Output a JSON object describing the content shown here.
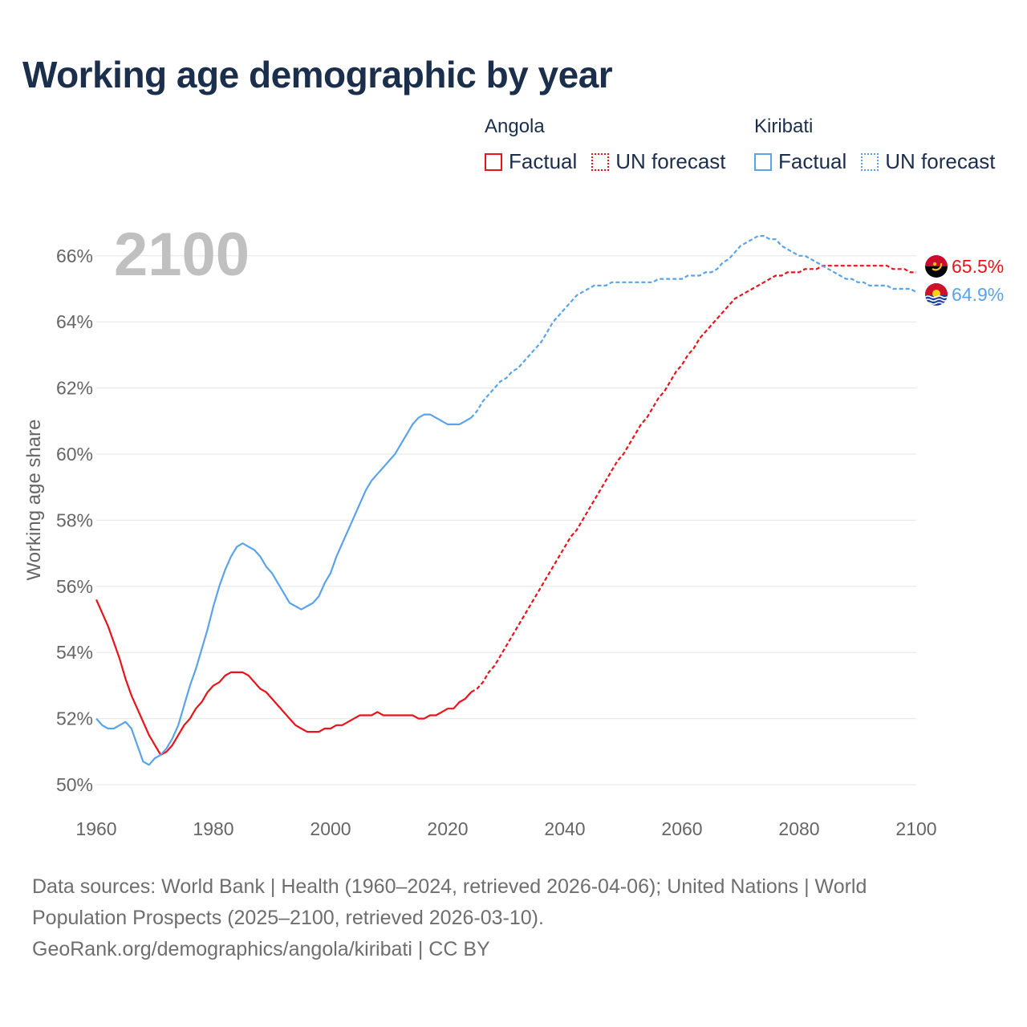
{
  "title": "Working age demographic by year",
  "legend": {
    "groups": [
      {
        "name": "Angola",
        "factual": "Factual",
        "forecast": "UN forecast",
        "color": "#e8131b"
      },
      {
        "name": "Kiribati",
        "factual": "Factual",
        "forecast": "UN forecast",
        "color": "#5aa3e8"
      }
    ]
  },
  "footer": {
    "line1": "Data sources: World Bank | Health (1960–2024, retrieved 2026-04-06); United Nations | World",
    "line2": "Population Prospects (2025–2100, retrieved 2026-03-10).",
    "line3": "GeoRank.org/demographics/angola/kiribati | CC BY"
  },
  "chart_data": {
    "type": "line",
    "title": "Working age demographic by year",
    "xlabel": "",
    "ylabel": "Working age share",
    "year_display": "2100",
    "xlim": [
      1960,
      2100
    ],
    "ylim": [
      50,
      66.5
    ],
    "xticks": [
      1960,
      1980,
      2000,
      2020,
      2040,
      2060,
      2080,
      2100
    ],
    "yticks": [
      50,
      52,
      54,
      56,
      58,
      60,
      62,
      64,
      66
    ],
    "ytick_labels": [
      "50%",
      "52%",
      "54%",
      "56%",
      "58%",
      "60%",
      "62%",
      "64%",
      "66%"
    ],
    "grid": true,
    "factual_end_year": 2024,
    "series": [
      {
        "name": "Angola",
        "color": "#e8131b",
        "end_label": "65.5%",
        "flag_icon": "angola-flag-icon",
        "factual": {
          "x": [
            1960,
            1961,
            1962,
            1963,
            1964,
            1965,
            1966,
            1967,
            1968,
            1969,
            1970,
            1971,
            1972,
            1973,
            1974,
            1975,
            1976,
            1977,
            1978,
            1979,
            1980,
            1981,
            1982,
            1983,
            1984,
            1985,
            1986,
            1987,
            1988,
            1989,
            1990,
            1991,
            1992,
            1993,
            1994,
            1995,
            1996,
            1997,
            1998,
            1999,
            2000,
            2001,
            2002,
            2003,
            2004,
            2005,
            2006,
            2007,
            2008,
            2009,
            2010,
            2011,
            2012,
            2013,
            2014,
            2015,
            2016,
            2017,
            2018,
            2019,
            2020,
            2021,
            2022,
            2023,
            2024
          ],
          "y": [
            55.6,
            55.2,
            54.8,
            54.3,
            53.8,
            53.2,
            52.7,
            52.3,
            51.9,
            51.5,
            51.2,
            50.9,
            51.0,
            51.2,
            51.5,
            51.8,
            52.0,
            52.3,
            52.5,
            52.8,
            53.0,
            53.1,
            53.3,
            53.4,
            53.4,
            53.4,
            53.3,
            53.1,
            52.9,
            52.8,
            52.6,
            52.4,
            52.2,
            52.0,
            51.8,
            51.7,
            51.6,
            51.6,
            51.6,
            51.7,
            51.7,
            51.8,
            51.8,
            51.9,
            52.0,
            52.1,
            52.1,
            52.1,
            52.2,
            52.1,
            52.1,
            52.1,
            52.1,
            52.1,
            52.1,
            52.0,
            52.0,
            52.1,
            52.1,
            52.2,
            52.3,
            52.3,
            52.5,
            52.6,
            52.8
          ]
        },
        "forecast": {
          "x": [
            2024,
            2025,
            2026,
            2027,
            2028,
            2029,
            2030,
            2031,
            2032,
            2033,
            2034,
            2035,
            2036,
            2037,
            2038,
            2039,
            2040,
            2041,
            2042,
            2043,
            2044,
            2045,
            2046,
            2047,
            2048,
            2049,
            2050,
            2051,
            2052,
            2053,
            2054,
            2055,
            2056,
            2057,
            2058,
            2059,
            2060,
            2061,
            2062,
            2063,
            2064,
            2065,
            2066,
            2067,
            2068,
            2069,
            2070,
            2071,
            2072,
            2073,
            2074,
            2075,
            2076,
            2077,
            2078,
            2079,
            2080,
            2081,
            2082,
            2083,
            2084,
            2085,
            2086,
            2087,
            2088,
            2089,
            2090,
            2091,
            2092,
            2093,
            2094,
            2095,
            2096,
            2097,
            2098,
            2099,
            2100
          ],
          "y": [
            52.8,
            52.9,
            53.1,
            53.4,
            53.6,
            53.9,
            54.2,
            54.5,
            54.8,
            55.1,
            55.4,
            55.7,
            56.0,
            56.3,
            56.6,
            56.9,
            57.2,
            57.5,
            57.7,
            58.0,
            58.3,
            58.6,
            58.9,
            59.2,
            59.5,
            59.8,
            60.0,
            60.3,
            60.6,
            60.9,
            61.1,
            61.4,
            61.7,
            61.9,
            62.2,
            62.5,
            62.7,
            63.0,
            63.2,
            63.5,
            63.7,
            63.9,
            64.1,
            64.3,
            64.5,
            64.7,
            64.8,
            64.9,
            65.0,
            65.1,
            65.2,
            65.3,
            65.4,
            65.4,
            65.5,
            65.5,
            65.5,
            65.6,
            65.6,
            65.6,
            65.7,
            65.7,
            65.7,
            65.7,
            65.7,
            65.7,
            65.7,
            65.7,
            65.7,
            65.7,
            65.7,
            65.7,
            65.6,
            65.6,
            65.6,
            65.5,
            65.5
          ]
        }
      },
      {
        "name": "Kiribati",
        "color": "#5aa3e8",
        "end_label": "64.9%",
        "flag_icon": "kiribati-flag-icon",
        "factual": {
          "x": [
            1960,
            1961,
            1962,
            1963,
            1964,
            1965,
            1966,
            1967,
            1968,
            1969,
            1970,
            1971,
            1972,
            1973,
            1974,
            1975,
            1976,
            1977,
            1978,
            1979,
            1980,
            1981,
            1982,
            1983,
            1984,
            1985,
            1986,
            1987,
            1988,
            1989,
            1990,
            1991,
            1992,
            1993,
            1994,
            1995,
            1996,
            1997,
            1998,
            1999,
            2000,
            2001,
            2002,
            2003,
            2004,
            2005,
            2006,
            2007,
            2008,
            2009,
            2010,
            2011,
            2012,
            2013,
            2014,
            2015,
            2016,
            2017,
            2018,
            2019,
            2020,
            2021,
            2022,
            2023,
            2024
          ],
          "y": [
            52.0,
            51.8,
            51.7,
            51.7,
            51.8,
            51.9,
            51.7,
            51.2,
            50.7,
            50.6,
            50.8,
            50.9,
            51.1,
            51.4,
            51.8,
            52.4,
            53.0,
            53.5,
            54.1,
            54.7,
            55.4,
            56.0,
            56.5,
            56.9,
            57.2,
            57.3,
            57.2,
            57.1,
            56.9,
            56.6,
            56.4,
            56.1,
            55.8,
            55.5,
            55.4,
            55.3,
            55.4,
            55.5,
            55.7,
            56.1,
            56.4,
            56.9,
            57.3,
            57.7,
            58.1,
            58.5,
            58.9,
            59.2,
            59.4,
            59.6,
            59.8,
            60.0,
            60.3,
            60.6,
            60.9,
            61.1,
            61.2,
            61.2,
            61.1,
            61.0,
            60.9,
            60.9,
            60.9,
            61.0,
            61.1
          ]
        },
        "forecast": {
          "x": [
            2024,
            2025,
            2026,
            2027,
            2028,
            2029,
            2030,
            2031,
            2032,
            2033,
            2034,
            2035,
            2036,
            2037,
            2038,
            2039,
            2040,
            2041,
            2042,
            2043,
            2044,
            2045,
            2046,
            2047,
            2048,
            2049,
            2050,
            2051,
            2052,
            2053,
            2054,
            2055,
            2056,
            2057,
            2058,
            2059,
            2060,
            2061,
            2062,
            2063,
            2064,
            2065,
            2066,
            2067,
            2068,
            2069,
            2070,
            2071,
            2072,
            2073,
            2074,
            2075,
            2076,
            2077,
            2078,
            2079,
            2080,
            2081,
            2082,
            2083,
            2084,
            2085,
            2086,
            2087,
            2088,
            2089,
            2090,
            2091,
            2092,
            2093,
            2094,
            2095,
            2096,
            2097,
            2098,
            2099,
            2100
          ],
          "y": [
            61.1,
            61.3,
            61.6,
            61.8,
            62.0,
            62.2,
            62.3,
            62.5,
            62.6,
            62.8,
            63.0,
            63.2,
            63.4,
            63.7,
            64.0,
            64.2,
            64.4,
            64.6,
            64.8,
            64.9,
            65.0,
            65.1,
            65.1,
            65.1,
            65.2,
            65.2,
            65.2,
            65.2,
            65.2,
            65.2,
            65.2,
            65.2,
            65.3,
            65.3,
            65.3,
            65.3,
            65.3,
            65.4,
            65.4,
            65.4,
            65.5,
            65.5,
            65.6,
            65.8,
            65.9,
            66.1,
            66.3,
            66.4,
            66.5,
            66.6,
            66.6,
            66.5,
            66.5,
            66.3,
            66.2,
            66.1,
            66.0,
            66.0,
            65.9,
            65.8,
            65.7,
            65.6,
            65.5,
            65.4,
            65.3,
            65.3,
            65.2,
            65.2,
            65.1,
            65.1,
            65.1,
            65.1,
            65.0,
            65.0,
            65.0,
            65.0,
            64.9
          ]
        }
      }
    ]
  }
}
